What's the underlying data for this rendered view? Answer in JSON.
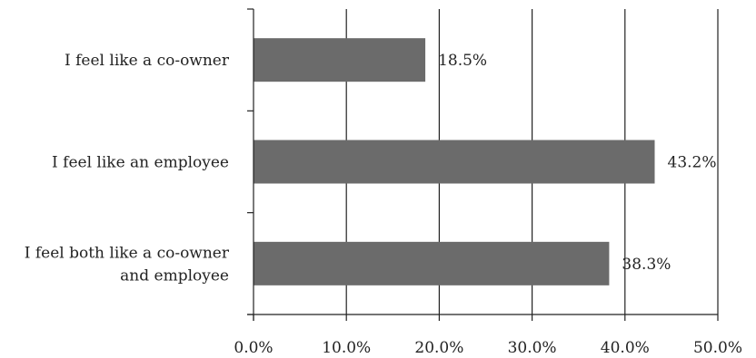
{
  "chart_data": {
    "type": "bar",
    "orientation": "horizontal",
    "categories": [
      [
        "I feel like a co-owner"
      ],
      [
        "I feel like an employee"
      ],
      [
        "I feel both like a co-owner",
        "and employee"
      ]
    ],
    "values": [
      18.5,
      43.2,
      38.3
    ],
    "data_labels": [
      "18.5%",
      "43.2%",
      "38.3%"
    ],
    "xlim": [
      0,
      50
    ],
    "xticks": [
      0,
      10,
      20,
      30,
      40,
      50
    ],
    "xtick_labels": [
      "0.0%",
      "10.0%",
      "20.0%",
      "30.0%",
      "40.0%",
      "50.0%"
    ],
    "grid": true,
    "legend": "none",
    "bar_color": "#6b6b6b"
  }
}
